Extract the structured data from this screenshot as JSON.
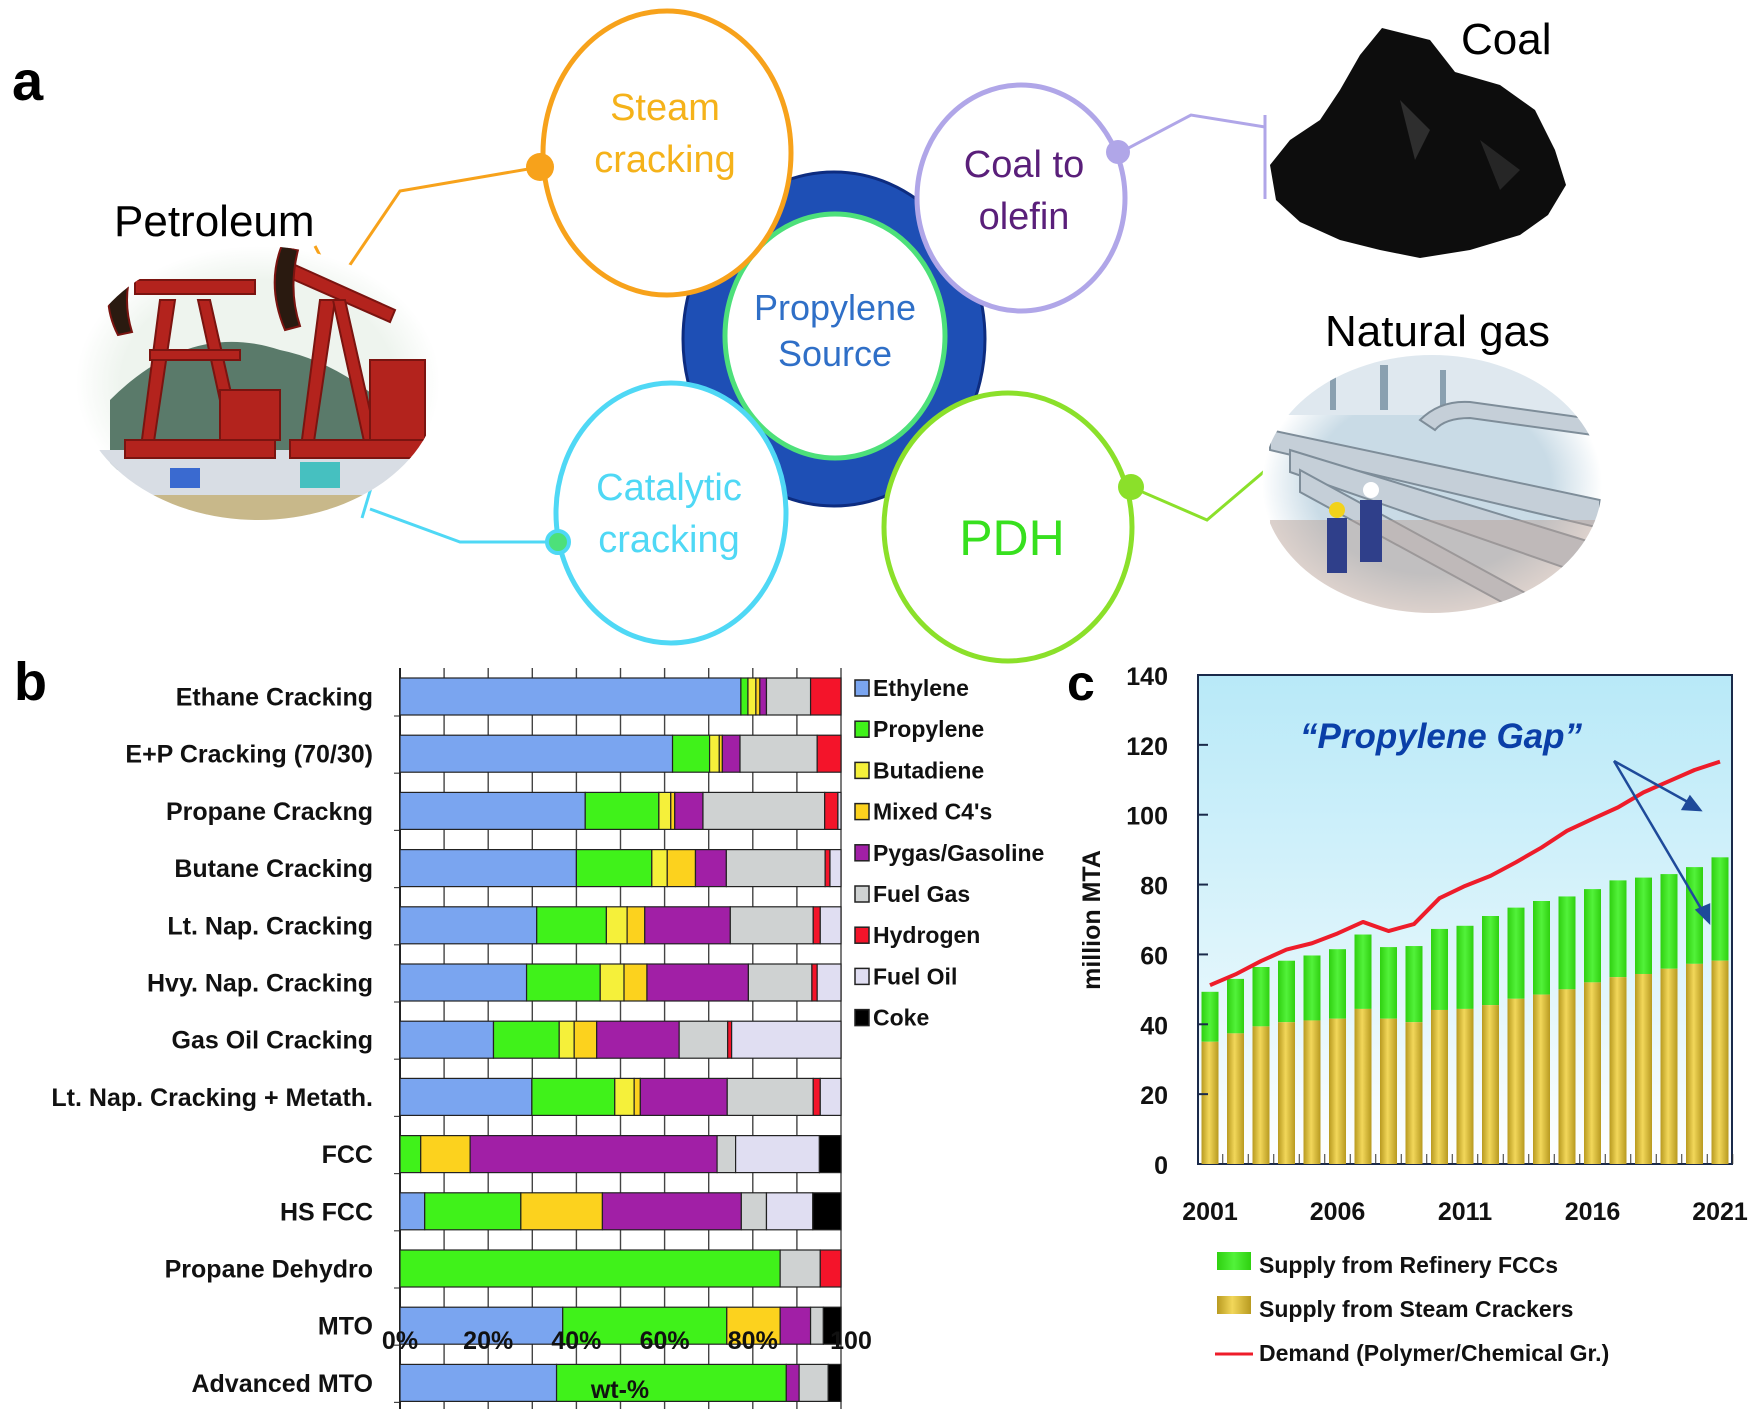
{
  "panel_a": {
    "letter": "a",
    "center": {
      "line1": "Propylene",
      "line2": "Source",
      "text_color": "#2f6fc7",
      "ring_color": "#1e4fb5",
      "inner_stroke": "#4de07a"
    },
    "nodes": [
      {
        "id": "steam",
        "line1": "Steam",
        "line2": "cracking",
        "color": "#f7a21b",
        "text_color": "#f5b21a"
      },
      {
        "id": "coal-to-olefin",
        "line1": "Coal to",
        "line2": "olefin",
        "color": "#b0a6e8",
        "text_color": "#5a1f7a"
      },
      {
        "id": "catalytic",
        "line1": "Catalytic",
        "line2": "cracking",
        "color": "#4fd8f5",
        "text_color": "#4fd8f5"
      },
      {
        "id": "pdh",
        "line1": "PDH",
        "line2": "",
        "color": "#8be02a",
        "text_color": "#37e01e"
      }
    ],
    "sources": [
      {
        "id": "petroleum",
        "label": "Petroleum",
        "icon": "oil-pumpjack-photo"
      },
      {
        "id": "coal",
        "label": "Coal",
        "icon": "coal-lump-photo"
      },
      {
        "id": "natural-gas",
        "label": "Natural gas",
        "icon": "gas-pipeline-photo"
      }
    ]
  },
  "chart_data": [
    {
      "panel": "b",
      "type": "bar",
      "orientation": "horizontal-stacked",
      "title": "",
      "xlabel": "wt-%",
      "ylabel": "",
      "xlim": [
        0,
        100
      ],
      "x_ticks": [
        "0%",
        "20%",
        "40%",
        "60%",
        "80%",
        "100"
      ],
      "grid": true,
      "legend_position": "right",
      "series_order": [
        "Ethylene",
        "Propylene",
        "Butadiene",
        "Mixed C4's",
        "Pygas/Gasoline",
        "Fuel Gas",
        "Hydrogen",
        "Fuel Oil",
        "Coke"
      ],
      "series_colors": [
        "#7aa5f0",
        "#40f21a",
        "#f5f03a",
        "#fcd21e",
        "#a11fa6",
        "#cfd2d2",
        "#f4142a",
        "#e0def2",
        "#000000"
      ],
      "categories": [
        "Ethane Cracking",
        "E+P Cracking (70/30)",
        "Propane Crackng",
        "Butane Cracking",
        "Lt. Nap. Cracking",
        "Hvy. Nap. Cracking",
        "Gas Oil Cracking",
        "Lt. Nap. Cracking + Metath.",
        "FCC",
        "HS FCC",
        "Propane Dehydro",
        "MTO",
        "Advanced MTO"
      ],
      "series": [
        {
          "name": "Ethylene",
          "values": [
            77.3,
            61.8,
            42.0,
            40.0,
            31.0,
            28.7,
            21.2,
            29.9,
            0.0,
            5.6,
            0.0,
            36.9,
            35.5
          ]
        },
        {
          "name": "Propylene",
          "values": [
            1.6,
            8.4,
            16.7,
            17.1,
            15.8,
            16.7,
            14.9,
            18.8,
            4.7,
            21.8,
            86.2,
            37.2,
            52.1
          ]
        },
        {
          "name": "Butadiene",
          "values": [
            1.8,
            2.2,
            2.7,
            3.5,
            4.7,
            5.4,
            3.4,
            4.4,
            0.0,
            0.0,
            0.0,
            0.0,
            0.0
          ]
        },
        {
          "name": "Mixed C4's",
          "values": [
            0.9,
            0.7,
            0.9,
            6.4,
            4.0,
            5.2,
            5.1,
            1.4,
            11.2,
            18.5,
            0.0,
            12.1,
            0.0
          ]
        },
        {
          "name": "Pygas/Gasoline",
          "values": [
            1.5,
            4.0,
            6.4,
            7.0,
            19.4,
            23.0,
            18.7,
            19.7,
            56.0,
            31.5,
            0.0,
            6.9,
            2.9
          ]
        },
        {
          "name": "Fuel Gas",
          "values": [
            10.0,
            17.5,
            27.6,
            22.4,
            18.8,
            14.4,
            11.0,
            19.5,
            4.2,
            5.7,
            9.1,
            2.9,
            6.6
          ]
        },
        {
          "name": "Hydrogen",
          "values": [
            6.9,
            5.4,
            3.0,
            1.1,
            1.6,
            1.2,
            0.9,
            1.6,
            0.0,
            0.0,
            4.7,
            0.0,
            0.0
          ]
        },
        {
          "name": "Fuel Oil",
          "values": [
            0.0,
            0.0,
            0.7,
            2.5,
            4.7,
            5.4,
            24.8,
            4.7,
            19.0,
            10.5,
            0.0,
            0.0,
            0.0
          ]
        },
        {
          "name": "Coke",
          "values": [
            0.0,
            0.0,
            0.0,
            0.0,
            0.0,
            0.0,
            0.0,
            0.0,
            4.9,
            6.4,
            0.0,
            4.0,
            2.9
          ]
        }
      ]
    },
    {
      "panel": "c",
      "type": "bar",
      "orientation": "vertical-stacked-with-line",
      "title": "",
      "xlabel": "",
      "ylabel": "million MTA",
      "ylim": [
        0,
        140
      ],
      "y_ticks": [
        0,
        20,
        40,
        60,
        80,
        100,
        120,
        140
      ],
      "x_tick_labels": [
        "2001",
        "2006",
        "2011",
        "2016",
        "2021"
      ],
      "x": [
        2001,
        2002,
        2003,
        2004,
        2005,
        2006,
        2007,
        2008,
        2009,
        2010,
        2011,
        2012,
        2013,
        2014,
        2015,
        2016,
        2017,
        2018,
        2019,
        2020,
        2021
      ],
      "annotation": "“Propylene Gap”",
      "annotation_color": "#0a3fa8",
      "legend_position": "bottom",
      "background_gradient": [
        "#b8e9f8",
        "#ffffff"
      ],
      "series": [
        {
          "name": "Supply from Steam Crackers",
          "kind": "bar",
          "color": "#e2c038",
          "values": [
            35.0,
            37.4,
            39.4,
            40.6,
            41.1,
            41.6,
            44.4,
            41.6,
            40.6,
            44.1,
            44.4,
            45.5,
            47.3,
            48.5,
            50.0,
            52.0,
            53.5,
            54.4,
            55.9,
            57.3,
            58.2
          ]
        },
        {
          "name": "Supply from Refinery FCCs",
          "kind": "bar",
          "color": "#40e81a",
          "values": [
            14.3,
            15.6,
            17.0,
            17.6,
            18.6,
            19.9,
            21.3,
            20.5,
            21.8,
            23.2,
            23.8,
            25.5,
            26.1,
            26.8,
            26.6,
            26.7,
            27.7,
            27.6,
            27.1,
            27.7,
            29.6
          ]
        },
        {
          "name": "Demand (Polymer/Chemical Gr.)",
          "kind": "line",
          "color": "#ee1c2a",
          "values": [
            51.2,
            54.3,
            58.1,
            61.4,
            63.2,
            66.0,
            69.3,
            66.7,
            68.7,
            76.1,
            79.6,
            82.5,
            86.4,
            90.6,
            95.4,
            98.8,
            102.1,
            106.4,
            109.6,
            112.8,
            115.2
          ]
        }
      ],
      "legend": [
        {
          "label": "Supply from Refinery FCCs",
          "swatch": "bar",
          "color": "#40e81a"
        },
        {
          "label": "Supply from Steam Crackers",
          "swatch": "bar",
          "color": "#e2c038"
        },
        {
          "label": "Demand (Polymer/Chemical Gr.)",
          "swatch": "line",
          "color": "#ee1c2a"
        }
      ]
    }
  ],
  "panel_b": {
    "letter": "b"
  },
  "panel_c": {
    "letter": "c"
  }
}
